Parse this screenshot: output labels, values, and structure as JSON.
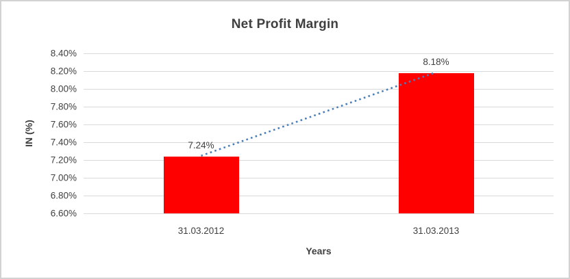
{
  "chart_data": {
    "type": "bar",
    "title": "Net Profit Margin",
    "ylabel": "IN (%)",
    "xlabel": "Years",
    "categories": [
      "31.03.2012",
      "31.03.2013"
    ],
    "values": [
      7.24,
      8.18
    ],
    "data_labels": [
      "7.24%",
      "8.18%"
    ],
    "yticks": [
      "8.40%",
      "8.20%",
      "8.00%",
      "7.80%",
      "7.60%",
      "7.40%",
      "7.20%",
      "7.00%",
      "6.80%",
      "6.60%"
    ],
    "ylim": [
      6.6,
      8.4
    ],
    "ytick_step": 0.2,
    "grid": true,
    "legend_position": "none",
    "trendline": {
      "style": "dotted",
      "connects": [
        "7.24%",
        "8.18%"
      ]
    },
    "colors": {
      "bar": "#ff0000",
      "trendline": "#4a7ebb",
      "gridline": "#d9d9d9",
      "text": "#404040",
      "border": "#d2d2d2",
      "background": "#ffffff"
    }
  }
}
